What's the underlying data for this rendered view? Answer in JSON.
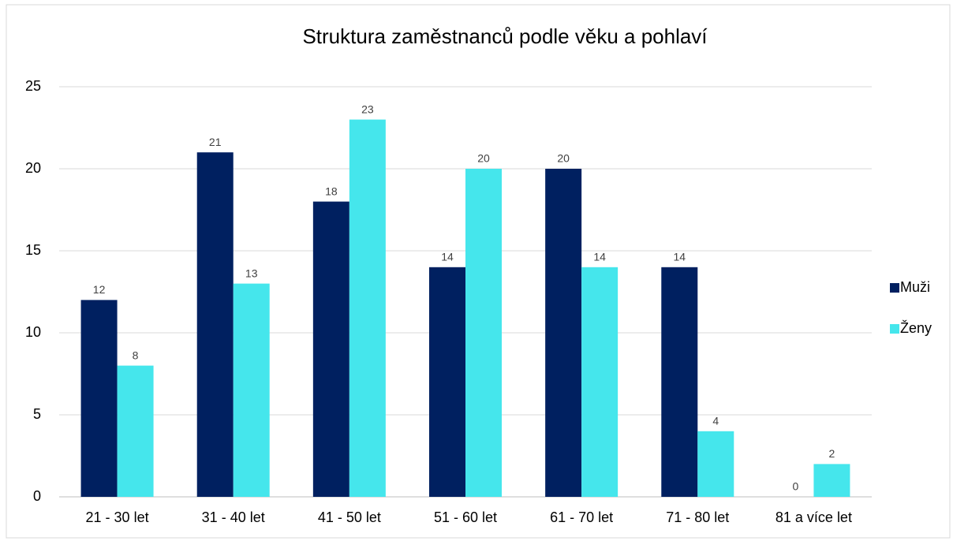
{
  "chart_data": {
    "type": "bar",
    "title": "Struktura zaměstnanců podle věku a pohlaví",
    "categories": [
      "21 - 30 let",
      "31 - 40 let",
      "41 - 50 let",
      "51 - 60 let",
      "61 - 70 let",
      "71 - 80 let",
      "81 a více let"
    ],
    "series": [
      {
        "name": "Muži",
        "color": "#002060",
        "values": [
          12,
          21,
          18,
          14,
          20,
          14,
          0
        ]
      },
      {
        "name": "Ženy",
        "color": "#45e6ec",
        "values": [
          8,
          13,
          23,
          20,
          14,
          4,
          2
        ]
      }
    ],
    "ylim": [
      0,
      25
    ],
    "yticks": [
      0,
      5,
      10,
      15,
      20,
      25
    ],
    "grid": true,
    "legend": "right"
  }
}
